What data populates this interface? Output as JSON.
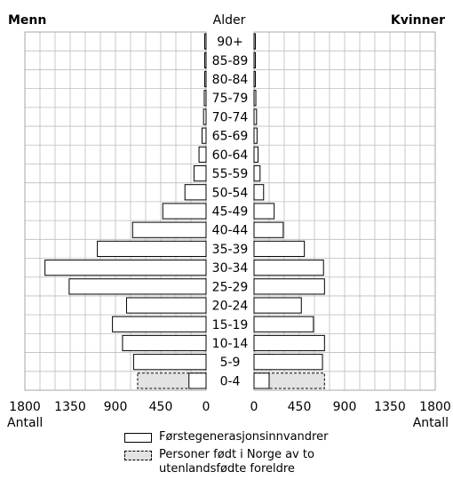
{
  "chart_data": {
    "type": "bar",
    "orientation": "horizontal",
    "subtype": "population-pyramid",
    "left_header": "Menn",
    "right_header": "Kvinner",
    "center_header": "Alder",
    "xlabel_left": "Antall",
    "xlabel_right": "Antall",
    "xlim": [
      0,
      1800
    ],
    "xticks_left": [
      "1800",
      "1350",
      "900",
      "450",
      "0"
    ],
    "xticks_right": [
      "0",
      "450",
      "900",
      "1350",
      "1800"
    ],
    "grid": true,
    "categories": [
      "0-4",
      "5-9",
      "10-14",
      "15-19",
      "20-24",
      "25-29",
      "30-34",
      "35-39",
      "40-44",
      "45-49",
      "50-54",
      "55-59",
      "60-64",
      "65-69",
      "70-74",
      "75-79",
      "80-84",
      "85-89",
      "90+"
    ],
    "series": [
      {
        "name": "Førstegenerasjonsinnvandrer",
        "style": "solid",
        "color": "#ffffff",
        "men": [
          170,
          720,
          830,
          930,
          790,
          1360,
          1600,
          1080,
          730,
          430,
          210,
          120,
          70,
          40,
          25,
          18,
          12,
          8,
          5
        ],
        "women": [
          150,
          680,
          700,
          590,
          470,
          700,
          690,
          500,
          290,
          200,
          95,
          60,
          40,
          30,
          25,
          18,
          12,
          8,
          5
        ]
      },
      {
        "name": "Personer født i Norge av to utenlandsfødte foreldre",
        "style": "dashed",
        "color": "#e3e3e3",
        "men": [
          680,
          200,
          20,
          0,
          0,
          0,
          0,
          0,
          0,
          0,
          0,
          0,
          0,
          0,
          0,
          0,
          0,
          0,
          0
        ],
        "women": [
          700,
          190,
          20,
          0,
          0,
          0,
          0,
          0,
          0,
          0,
          0,
          0,
          0,
          0,
          0,
          0,
          0,
          0,
          0
        ]
      }
    ]
  },
  "legend": {
    "first_gen_label": "Førstegenerasjonsinnvandrer",
    "born_norway_label": "Personer født i Norge av to utenlandsfødte foreldre"
  }
}
